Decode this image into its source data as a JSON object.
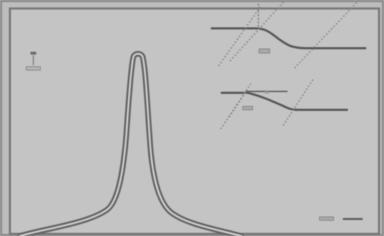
{
  "figure": {
    "type": "diagram",
    "description_labels": []
  },
  "colors": {
    "background": "#bcbdbc",
    "outer_background": "#a9aba9",
    "frame_dark": "#6f706f",
    "curve_outer": "#666766",
    "curve_inner": "#cfd0cf",
    "line": "#505150",
    "dashed_line": "#777877"
  }
}
